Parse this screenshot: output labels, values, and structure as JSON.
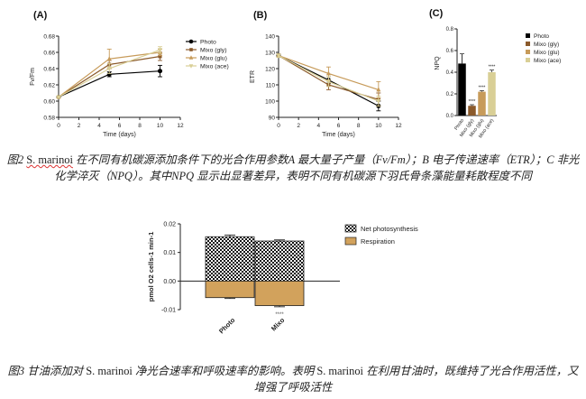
{
  "chart_data": [
    {
      "type": "line",
      "panel_label": "(A)",
      "xlabel": "Time (days)",
      "ylabel": "Fv/Fm",
      "xlim": [
        0,
        12
      ],
      "ylim": [
        0.58,
        0.68
      ],
      "x_ticks": [
        "0",
        "2",
        "4",
        "6",
        "8",
        "10",
        "12"
      ],
      "y_ticks": [
        "0.58",
        "0.60",
        "0.62",
        "0.64",
        "0.66",
        "0.68"
      ],
      "x": [
        0,
        5,
        10
      ],
      "series": [
        {
          "name": "Photo",
          "color": "#000000",
          "marker": "circle",
          "values": [
            0.605,
            0.633,
            0.637
          ],
          "err": [
            0.001,
            0.003,
            0.007
          ]
        },
        {
          "name": "Mixo (gly)",
          "color": "#8b5a2b",
          "marker": "square",
          "values": [
            0.605,
            0.645,
            0.655
          ],
          "err": [
            0.001,
            0.005,
            0.005
          ]
        },
        {
          "name": "Mixo (glu)",
          "color": "#c79b5a",
          "marker": "triangle",
          "values": [
            0.605,
            0.652,
            0.66
          ],
          "err": [
            0.001,
            0.012,
            0.004
          ]
        },
        {
          "name": "Mixo (ace)",
          "color": "#d9cf96",
          "marker": "invtriangle",
          "values": [
            0.605,
            0.64,
            0.663
          ],
          "err": [
            0.001,
            0.006,
            0.004
          ]
        }
      ],
      "legend": "right"
    },
    {
      "type": "line",
      "panel_label": "(B)",
      "xlabel": "Time (days)",
      "ylabel": "ETR",
      "xlim": [
        0,
        12
      ],
      "ylim": [
        90,
        140
      ],
      "x_ticks": [
        "0",
        "2",
        "4",
        "6",
        "8",
        "10",
        "12"
      ],
      "y_ticks": [
        "90",
        "100",
        "110",
        "120",
        "130",
        "140"
      ],
      "x": [
        0,
        5,
        10
      ],
      "series": [
        {
          "name": "Photo",
          "color": "#000000",
          "marker": "circle",
          "values": [
            128,
            113,
            97
          ],
          "err": [
            1,
            2,
            3
          ]
        },
        {
          "name": "Mixo (gly)",
          "color": "#8b5a2b",
          "marker": "square",
          "values": [
            128,
            110,
            101
          ],
          "err": [
            1,
            3,
            4
          ]
        },
        {
          "name": "Mixo (glu)",
          "color": "#c79b5a",
          "marker": "triangle",
          "values": [
            128,
            117,
            107
          ],
          "err": [
            1,
            4,
            5
          ]
        },
        {
          "name": "Mixo (ace)",
          "color": "#d9cf96",
          "marker": "invtriangle",
          "values": [
            128,
            112,
            100
          ],
          "err": [
            1,
            3,
            3
          ]
        }
      ]
    },
    {
      "type": "bar",
      "panel_label": "(C)",
      "ylabel": "NPQ",
      "ylim": [
        0,
        0.8
      ],
      "y_ticks": [
        "0.0",
        "0.2",
        "0.4",
        "0.6",
        "0.8"
      ],
      "categories": [
        "Photo",
        "Mixo (gly)",
        "Mixo (glu)",
        "Mixo (ace)"
      ],
      "values": [
        0.48,
        0.09,
        0.22,
        0.4
      ],
      "err": [
        0.09,
        0.01,
        0.01,
        0.02
      ],
      "colors": [
        "#000000",
        "#8b5a2b",
        "#c79b5a",
        "#d9cf96"
      ],
      "annotations": [
        "",
        "****",
        "****",
        "****"
      ],
      "legend": [
        "Photo",
        "Mixo (gly)",
        "Mixo (glu)",
        "Mixo (ace)"
      ]
    },
    {
      "type": "bar",
      "ylabel": "pmol O2 cells-1 min-1",
      "ylim": [
        -0.01,
        0.02
      ],
      "y_ticks": [
        "-0.01",
        "0.00",
        "0.01",
        "0.02"
      ],
      "categories": [
        "Photo",
        "Mixo"
      ],
      "series": [
        {
          "name": "Net photosynthesis",
          "pattern": "checker",
          "values": [
            0.0155,
            0.014
          ],
          "err": [
            0.0006,
            0.0004
          ]
        },
        {
          "name": "Respiration",
          "color": "#d2a25c",
          "values": [
            -0.0058,
            -0.0086
          ],
          "err": [
            0.0003,
            0.0004
          ]
        }
      ],
      "annotations": [
        "",
        "****"
      ],
      "legend": "top-right"
    }
  ],
  "captions": {
    "fig2_a": "图2 ",
    "fig2_species": "S. marinoi",
    "fig2_b": " 在不同有机碳源添加条件下的光合作用参数A 最大量子产量（Fv/Fm）；B 电子传递速率（ETR）；C 非光化学淬灭（NPQ）。其中NPQ 显示出显著差异，表明不同有机碳源下羽氏骨条藻能量耗散程度不同",
    "fig3_a": "图3 甘油添加对 ",
    "fig3_species1": "S. marinoi",
    "fig3_b": " 净光合速率和呼吸速率的影响。表明 ",
    "fig3_species2": "S. marinoi",
    "fig3_c": " 在利用甘油时，既维持了光合作用活性，又增强了呼吸活性"
  }
}
